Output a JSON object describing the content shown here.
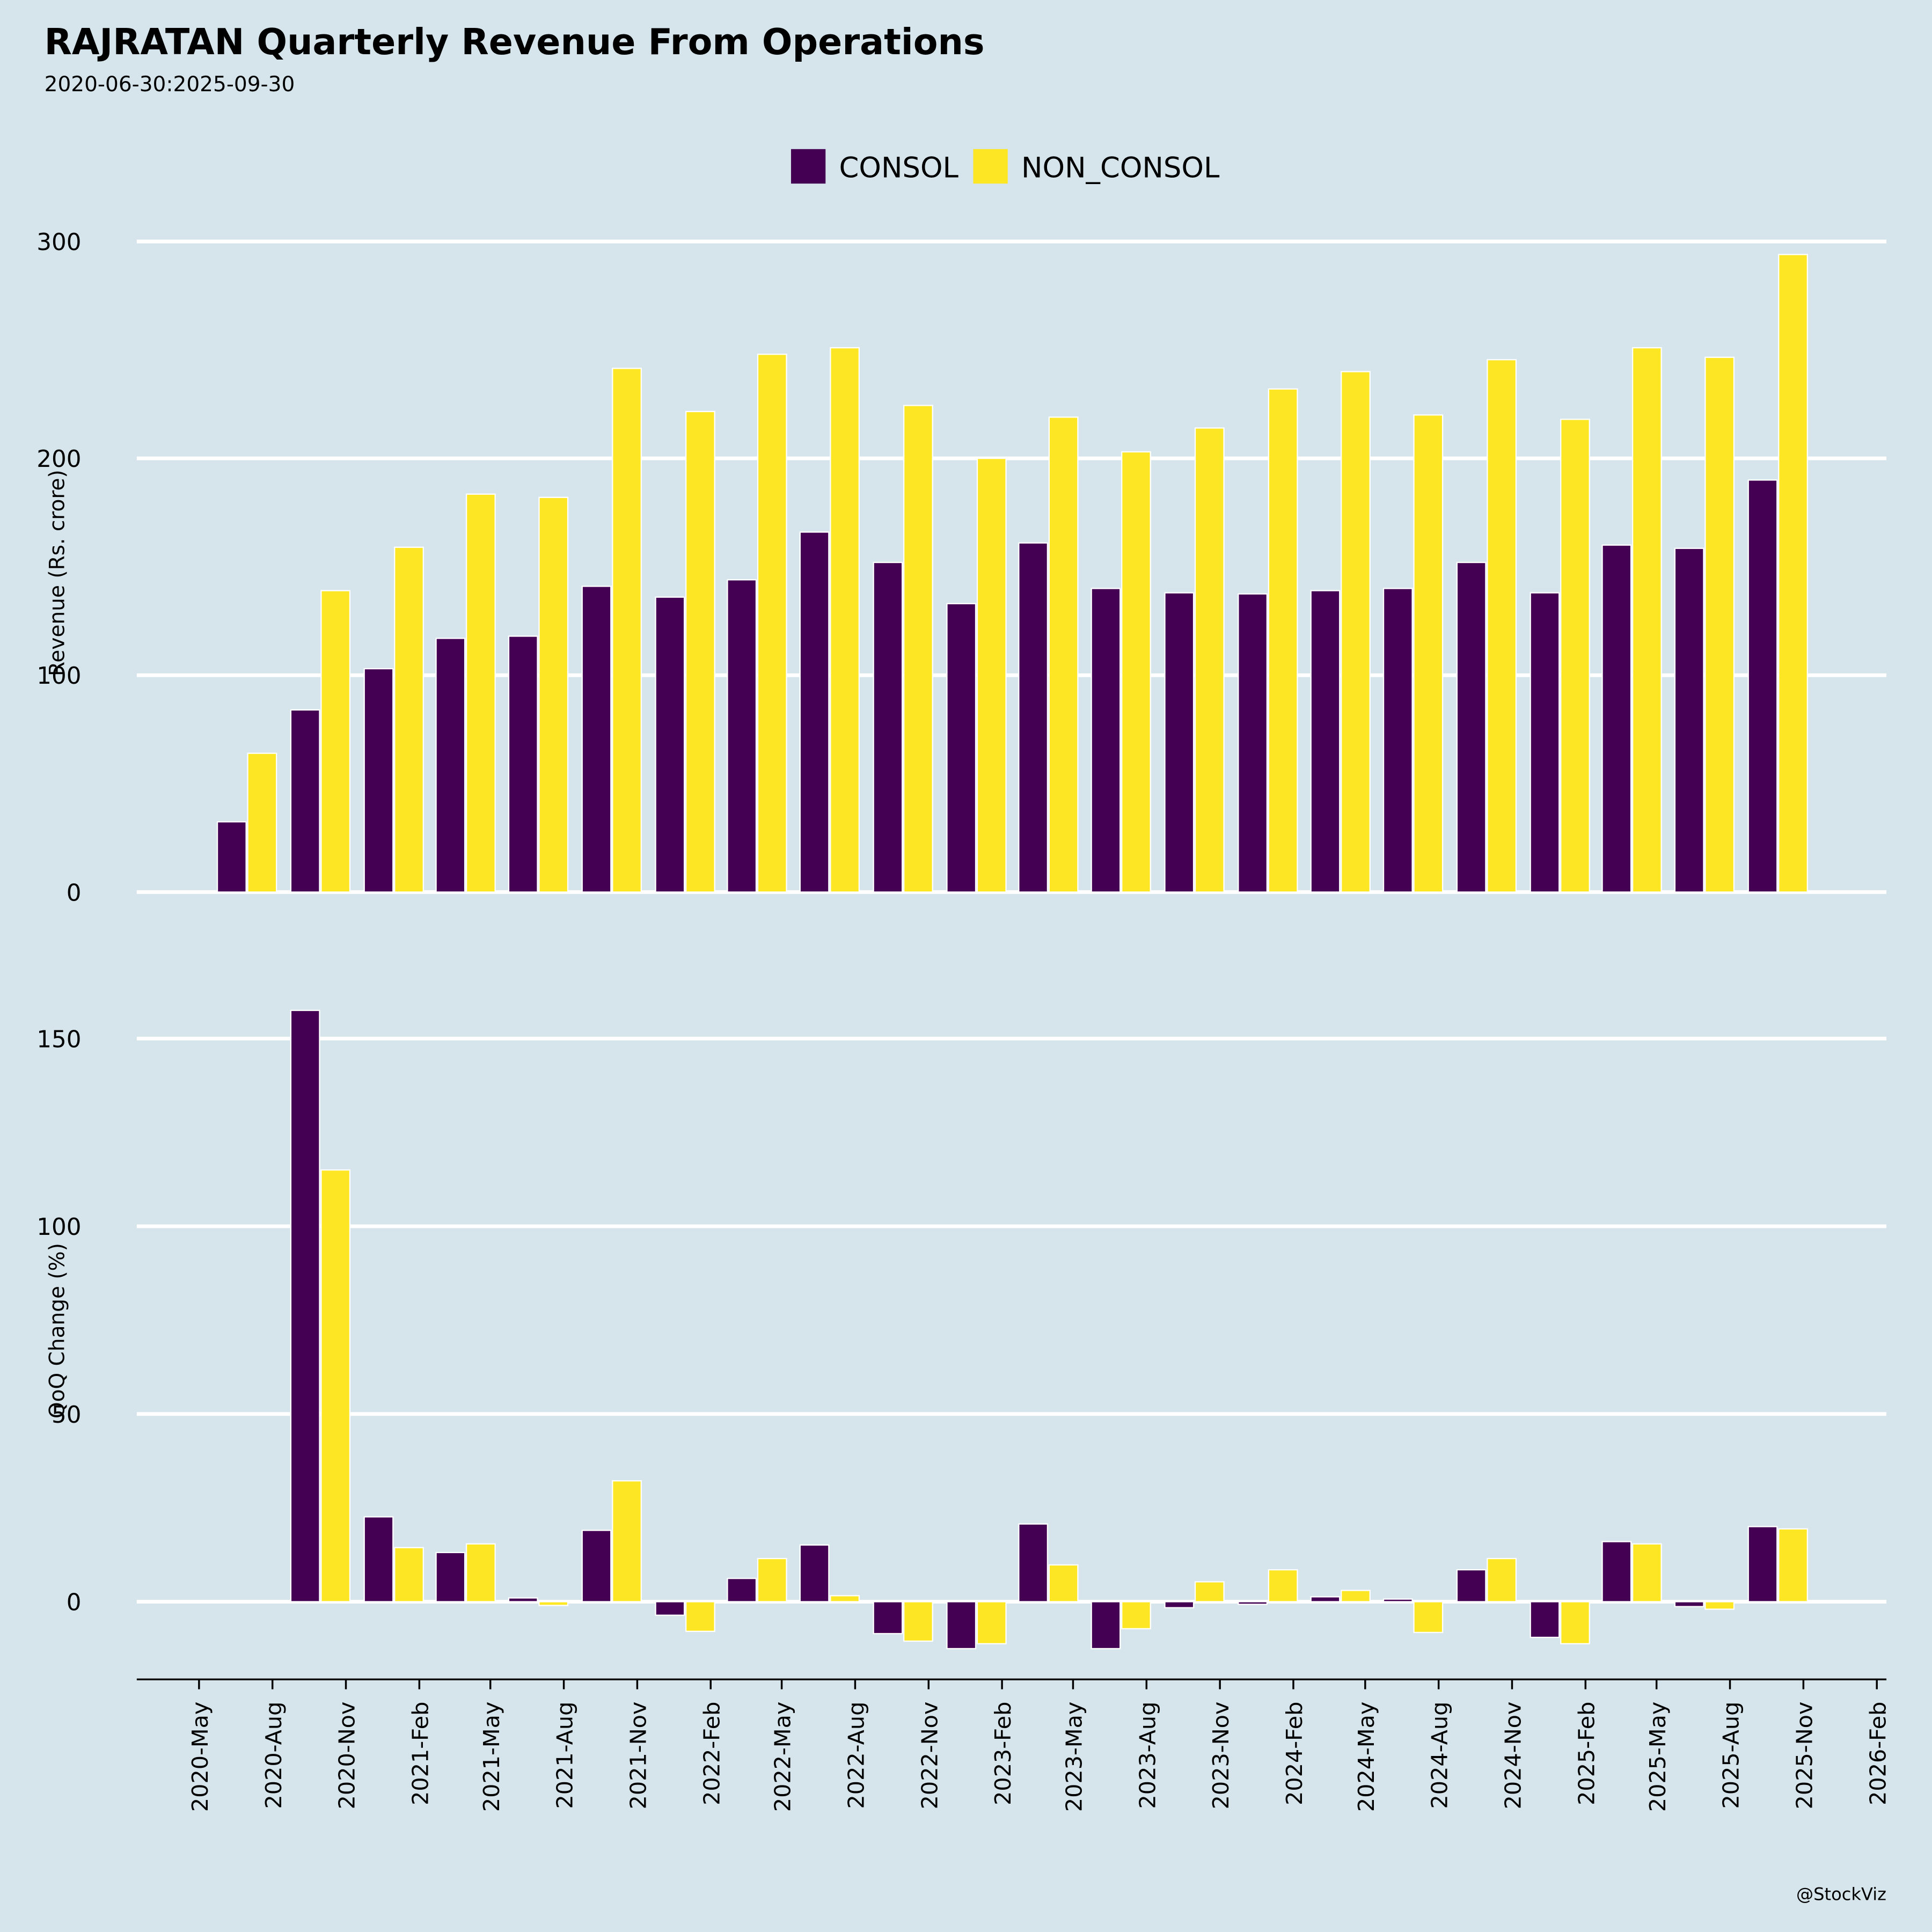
{
  "chart_data": [
    {
      "type": "bar",
      "title": "RAJRATAN Quarterly Revenue From Operations",
      "subtitle": "2020-06-30:2025-09-30",
      "y_label": "Revenue (Rs. crore)",
      "x": [
        "2020-06-30",
        "2020-09-30",
        "2020-12-31",
        "2021-03-31",
        "2021-06-30",
        "2021-09-30",
        "2021-12-31",
        "2022-03-31",
        "2022-06-30",
        "2022-09-30",
        "2022-12-31",
        "2023-03-31",
        "2023-06-30",
        "2023-09-30",
        "2023-12-31",
        "2024-03-31",
        "2024-06-30",
        "2024-09-30",
        "2024-12-31",
        "2025-03-31",
        "2025-06-30",
        "2025-09-30"
      ],
      "series": [
        {
          "name": "CONSOL",
          "color": "#440154",
          "values": [
            32.4,
            84,
            103,
            117,
            118,
            141,
            136,
            144,
            166,
            152,
            133,
            161,
            140,
            138,
            137.5,
            139,
            140,
            152,
            138,
            160,
            158.5,
            190
          ]
        },
        {
          "name": "NON_CONSOL",
          "color": "#fde725",
          "values": [
            64,
            139,
            159,
            183.5,
            182,
            241.5,
            221.6,
            248,
            251,
            224.4,
            200,
            219,
            203,
            214,
            232,
            240,
            220,
            245.5,
            218,
            251,
            246.6,
            294
          ]
        }
      ],
      "xlim": [
        "2020-02-13",
        "2026-02-13"
      ],
      "ylim": [
        0,
        310
      ],
      "yticks": [
        0,
        100,
        200,
        300
      ],
      "grid": true
    },
    {
      "type": "bar",
      "y_label": "QoQ Change (%)",
      "x": [
        "2020-06-30",
        "2020-09-30",
        "2020-12-31",
        "2021-03-31",
        "2021-06-30",
        "2021-09-30",
        "2021-12-31",
        "2022-03-31",
        "2022-06-30",
        "2022-09-30",
        "2022-12-31",
        "2023-03-31",
        "2023-06-30",
        "2023-09-30",
        "2023-12-31",
        "2024-03-31",
        "2024-06-30",
        "2024-09-30",
        "2024-12-31",
        "2025-03-31",
        "2025-06-30",
        "2025-09-30"
      ],
      "series": [
        {
          "color": "#440154",
          "values": [
            null,
            157.5,
            22.6,
            13.1,
            1,
            19,
            -3.6,
            6.2,
            15.1,
            -8.5,
            -12.5,
            20.7,
            -12.5,
            -1.6,
            -0.7,
            1.3,
            0.7,
            8.5,
            -9.5,
            16,
            -1.3,
            20
          ]
        },
        {
          "color": "#fde725",
          "values": [
            null,
            115,
            14.4,
            15.4,
            -1,
            32.2,
            -7.9,
            11.5,
            1.6,
            -10.5,
            -11.2,
            9.8,
            -7.2,
            5.3,
            8.5,
            3,
            -8.2,
            11.5,
            -11.2,
            15.4,
            -2,
            19.4
          ]
        }
      ],
      "xlim": [
        "2020-02-13",
        "2026-02-13"
      ],
      "xticks": [
        {
          "value": "2020-05-01",
          "label": "2020-May"
        },
        {
          "value": "2020-08-01",
          "label": "2020-Aug"
        },
        {
          "value": "2020-11-01",
          "label": "2020-Nov"
        },
        {
          "value": "2021-02-01",
          "label": "2021-Feb"
        },
        {
          "value": "2021-05-01",
          "label": "2021-May"
        },
        {
          "value": "2021-08-01",
          "label": "2021-Aug"
        },
        {
          "value": "2021-11-01",
          "label": "2021-Nov"
        },
        {
          "value": "2022-02-01",
          "label": "2022-Feb"
        },
        {
          "value": "2022-05-01",
          "label": "2022-May"
        },
        {
          "value": "2022-08-01",
          "label": "2022-Aug"
        },
        {
          "value": "2022-11-01",
          "label": "2022-Nov"
        },
        {
          "value": "2023-02-01",
          "label": "2023-Feb"
        },
        {
          "value": "2023-05-01",
          "label": "2023-May"
        },
        {
          "value": "2023-08-01",
          "label": "2023-Aug"
        },
        {
          "value": "2023-11-01",
          "label": "2023-Nov"
        },
        {
          "value": "2024-02-01",
          "label": "2024-Feb"
        },
        {
          "value": "2024-05-01",
          "label": "2024-May"
        },
        {
          "value": "2024-08-01",
          "label": "2024-Aug"
        },
        {
          "value": "2024-11-01",
          "label": "2024-Nov"
        },
        {
          "value": "2025-02-01",
          "label": "2025-Feb"
        },
        {
          "value": "2025-05-01",
          "label": "2025-May"
        },
        {
          "value": "2025-08-01",
          "label": "2025-Aug"
        },
        {
          "value": "2025-11-01",
          "label": "2025-Nov"
        },
        {
          "value": "2026-02-01",
          "label": "2026-Feb"
        }
      ],
      "ylim": [
        -20.7,
        171
      ],
      "yticks": [
        0,
        50,
        100,
        150
      ],
      "grid": true
    }
  ],
  "credit": "@StockViz"
}
